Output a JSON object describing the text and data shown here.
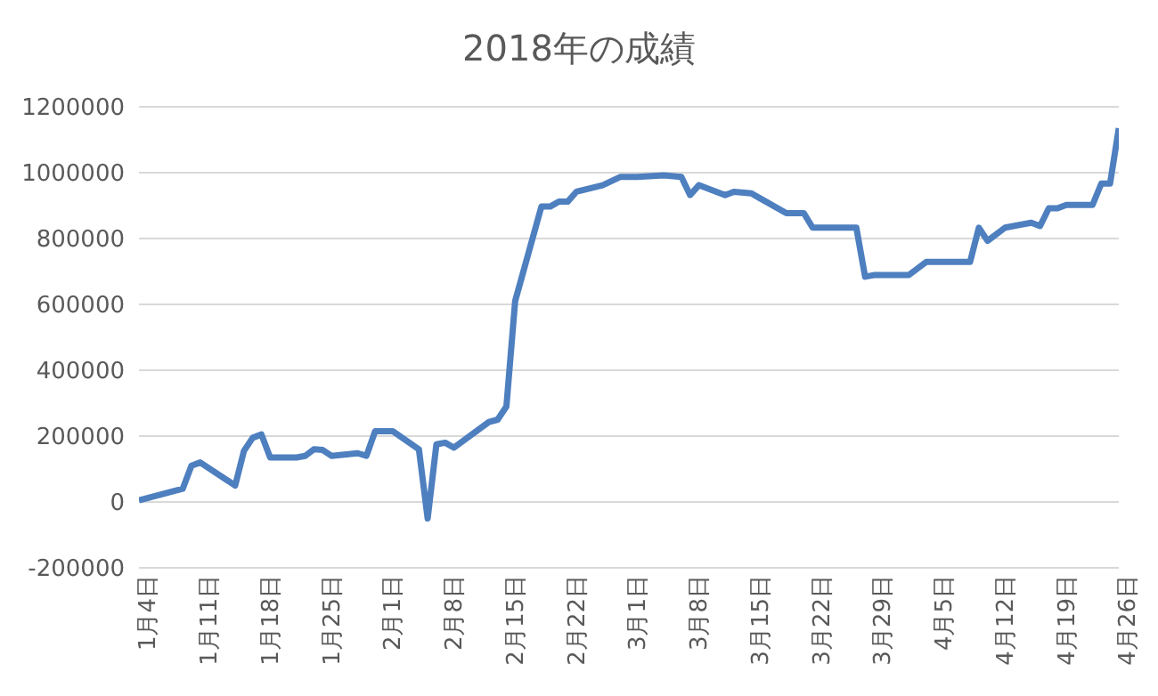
{
  "chart_data": {
    "type": "line",
    "title": "2018年の成績",
    "x": [
      "--01-04",
      "--01-09",
      "--01-10",
      "--01-11",
      "--01-15",
      "--01-16",
      "--01-17",
      "--01-18",
      "--01-19",
      "--01-22",
      "--01-23",
      "--01-24",
      "--01-25",
      "--01-26",
      "--01-29",
      "--01-30",
      "--01-31",
      "--02-02",
      "--02-05",
      "--02-06",
      "--02-07",
      "--02-08",
      "--02-09",
      "--02-13",
      "--02-14",
      "--02-15",
      "--02-16",
      "--02-19",
      "--02-20",
      "--02-21",
      "--02-22",
      "--02-23",
      "--02-26",
      "--02-28",
      "--03-02",
      "--03-05",
      "--03-07",
      "--03-08",
      "--03-09",
      "--03-12",
      "--03-13",
      "--03-15",
      "--03-16",
      "--03-19",
      "--03-21",
      "--03-22",
      "--03-27",
      "--03-28",
      "--03-29",
      "--04-02",
      "--04-04",
      "--04-09",
      "--04-10",
      "--04-11",
      "--04-13",
      "--04-16",
      "--04-17",
      "--04-18",
      "--04-19",
      "--04-20",
      "--04-23",
      "--04-24",
      "--04-25",
      "--04-26"
    ],
    "series": [
      {
        "color": "#4e7fbf",
        "values": [
          5000,
          40000,
          110000,
          120000,
          50000,
          155000,
          195000,
          205000,
          135000,
          135000,
          140000,
          160000,
          158000,
          140000,
          148000,
          140000,
          215000,
          215000,
          160000,
          -50000,
          175000,
          180000,
          165000,
          243000,
          250000,
          290000,
          610000,
          897000,
          897000,
          912000,
          912000,
          942000,
          962000,
          987000,
          987000,
          992000,
          987000,
          932000,
          962000,
          932000,
          942000,
          937000,
          922000,
          877000,
          877000,
          833000,
          833000,
          684000,
          689000,
          689000,
          729000,
          729000,
          833000,
          793000,
          833000,
          848000,
          838000,
          892000,
          892000,
          902000,
          902000,
          967000,
          967000,
          1135000
        ]
      }
    ],
    "xlim": [
      "--01-04",
      "--04-26"
    ],
    "xticks": [
      {
        "value": "--01-04",
        "label": "1月4日"
      },
      {
        "value": "--01-11",
        "label": "1月11日"
      },
      {
        "value": "--01-18",
        "label": "1月18日"
      },
      {
        "value": "--01-25",
        "label": "1月25日"
      },
      {
        "value": "--02-01",
        "label": "2月1日"
      },
      {
        "value": "--02-08",
        "label": "2月8日"
      },
      {
        "value": "--02-15",
        "label": "2月15日"
      },
      {
        "value": "--02-22",
        "label": "2月22日"
      },
      {
        "value": "--03-01",
        "label": "3月1日"
      },
      {
        "value": "--03-08",
        "label": "3月8日"
      },
      {
        "value": "--03-15",
        "label": "3月15日"
      },
      {
        "value": "--03-22",
        "label": "3月22日"
      },
      {
        "value": "--03-29",
        "label": "3月29日"
      },
      {
        "value": "--04-05",
        "label": "4月5日"
      },
      {
        "value": "--04-12",
        "label": "4月12日"
      },
      {
        "value": "--04-19",
        "label": "4月19日"
      },
      {
        "value": "--04-26",
        "label": "4月26日"
      }
    ],
    "ylim": [
      -200000,
      1200000
    ],
    "yticks": [
      -200000,
      0,
      200000,
      400000,
      600000,
      800000,
      1000000,
      1200000
    ],
    "grid": "y",
    "marker": "none",
    "line_style": "solid"
  }
}
